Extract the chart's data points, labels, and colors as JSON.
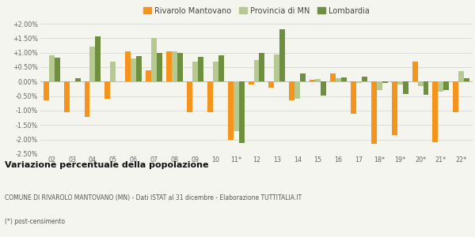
{
  "years": [
    "02",
    "03",
    "04",
    "05",
    "06",
    "07",
    "08",
    "09",
    "10",
    "11*",
    "12",
    "13",
    "14",
    "15",
    "16",
    "17",
    "18*",
    "19*",
    "20*",
    "21*",
    "22*"
  ],
  "rivarolo": [
    -0.65,
    -1.05,
    -1.22,
    -0.6,
    1.05,
    0.38,
    1.05,
    -1.05,
    -1.05,
    -2.0,
    -0.1,
    -0.2,
    -0.65,
    0.05,
    0.28,
    -1.1,
    -2.15,
    -1.85,
    0.7,
    -2.1,
    -1.05
  ],
  "provincia": [
    0.9,
    0.0,
    1.2,
    0.7,
    0.8,
    1.5,
    1.05,
    0.68,
    0.68,
    -1.7,
    0.75,
    0.93,
    -0.6,
    0.1,
    0.12,
    -0.05,
    -0.3,
    -0.1,
    -0.15,
    -0.35,
    0.35
  ],
  "lombardia": [
    0.82,
    0.12,
    1.55,
    0.0,
    0.88,
    1.0,
    1.0,
    0.85,
    0.92,
    -2.12,
    0.98,
    1.8,
    0.27,
    -0.48,
    0.15,
    0.17,
    -0.05,
    -0.42,
    -0.45,
    -0.28,
    0.12
  ],
  "color_rivarolo": "#f5941d",
  "color_provincia": "#b5c990",
  "color_lombardia": "#6e8f3e",
  "bg_color": "#f5f5f0",
  "grid_color": "#d8d8d8",
  "ylim_min": -2.5,
  "ylim_max": 2.0,
  "yticks": [
    -2.5,
    -2.0,
    -1.5,
    -1.0,
    -0.5,
    0.0,
    0.5,
    1.0,
    1.5,
    2.0
  ],
  "ytick_labels": [
    "-2.50%",
    "-2.00%",
    "-1.50%",
    "-1.00%",
    "-0.50%",
    "0.00%",
    "+0.50%",
    "+1.00%",
    "+1.50%",
    "+2.00%"
  ],
  "legend_labels": [
    "Rivarolo Mantovano",
    "Provincia di MN",
    "Lombardia"
  ],
  "title": "Variazione percentuale della popolazione",
  "subtitle": "COMUNE DI RIVAROLO MANTOVANO (MN) - Dati ISTAT al 31 dicembre - Elaborazione TUTTITALIA.IT",
  "footnote": "(*) post-censimento"
}
